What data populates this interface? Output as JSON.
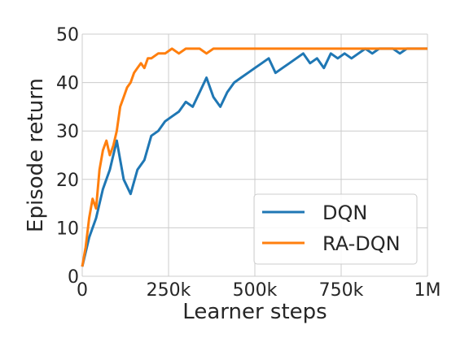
{
  "chart_data": {
    "type": "line",
    "title": "",
    "xlabel": "Learner steps",
    "ylabel": "Episode return",
    "xlim": [
      0,
      1000000
    ],
    "ylim": [
      0,
      50
    ],
    "x_ticks": [
      {
        "value": 0,
        "label": "0"
      },
      {
        "value": 250000,
        "label": "250k"
      },
      {
        "value": 500000,
        "label": "500k"
      },
      {
        "value": 750000,
        "label": "750k"
      },
      {
        "value": 1000000,
        "label": "1M"
      }
    ],
    "y_ticks": [
      {
        "value": 0,
        "label": "0"
      },
      {
        "value": 10,
        "label": "10"
      },
      {
        "value": 20,
        "label": "20"
      },
      {
        "value": 30,
        "label": "30"
      },
      {
        "value": 40,
        "label": "40"
      },
      {
        "value": 50,
        "label": "50"
      }
    ],
    "grid": true,
    "legend_position": "lower-right",
    "series": [
      {
        "name": "DQN",
        "color": "#1f77b4",
        "x": [
          0,
          20000,
          40000,
          60000,
          80000,
          100000,
          120000,
          140000,
          160000,
          180000,
          200000,
          220000,
          240000,
          260000,
          280000,
          300000,
          320000,
          340000,
          360000,
          380000,
          400000,
          420000,
          440000,
          460000,
          480000,
          500000,
          520000,
          540000,
          560000,
          580000,
          600000,
          620000,
          640000,
          660000,
          680000,
          700000,
          720000,
          740000,
          760000,
          780000,
          800000,
          820000,
          840000,
          860000,
          880000,
          900000,
          920000,
          940000,
          960000,
          980000,
          1000000
        ],
        "y": [
          2,
          8,
          12,
          18,
          22,
          28,
          20,
          17,
          22,
          24,
          29,
          30,
          32,
          33,
          34,
          36,
          35,
          38,
          41,
          37,
          35,
          38,
          40,
          41,
          42,
          43,
          44,
          45,
          42,
          43,
          44,
          45,
          46,
          44,
          45,
          43,
          46,
          45,
          46,
          45,
          46,
          47,
          46,
          47,
          47,
          47,
          46,
          47,
          47,
          47,
          47
        ]
      },
      {
        "name": "RA-DQN",
        "color": "#ff7f0e",
        "x": [
          0,
          10000,
          20000,
          30000,
          40000,
          50000,
          60000,
          70000,
          80000,
          90000,
          100000,
          110000,
          120000,
          130000,
          140000,
          150000,
          160000,
          170000,
          180000,
          190000,
          200000,
          220000,
          240000,
          260000,
          280000,
          300000,
          320000,
          340000,
          360000,
          380000,
          400000,
          450000,
          500000,
          550000,
          600000,
          650000,
          700000,
          750000,
          800000,
          850000,
          900000,
          950000,
          1000000
        ],
        "y": [
          2,
          6,
          12,
          16,
          14,
          22,
          26,
          28,
          25,
          27,
          30,
          35,
          37,
          39,
          40,
          42,
          43,
          44,
          43,
          45,
          45,
          46,
          46,
          47,
          46,
          47,
          47,
          47,
          46,
          47,
          47,
          47,
          47,
          47,
          47,
          47,
          47,
          47,
          47,
          47,
          47,
          47,
          47
        ]
      }
    ]
  }
}
